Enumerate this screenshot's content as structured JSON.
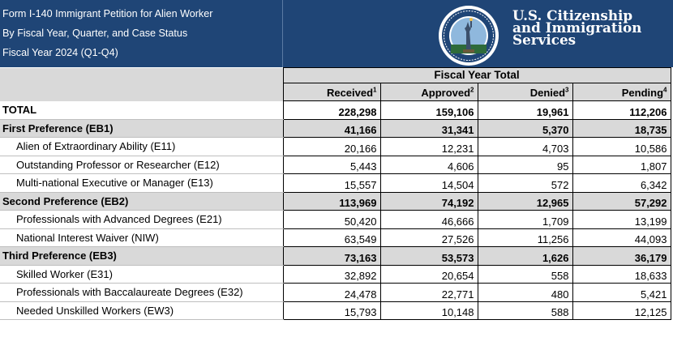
{
  "header": {
    "title_lines": [
      "Form I-140 Immigrant Petition for Alien Worker",
      "By Fiscal Year, Quarter, and Case Status",
      "Fiscal Year 2024 (Q1-Q4)"
    ],
    "agency_lines": [
      "U.S. Citizenship",
      "and Immigration",
      "Services"
    ],
    "logo": "uscis-seal",
    "background_color": "#1f4576"
  },
  "table": {
    "group_header": "Fiscal Year Total",
    "columns": [
      {
        "label": "Received",
        "note": "1"
      },
      {
        "label": "Approved",
        "note": "2"
      },
      {
        "label": "Denied",
        "note": "3"
      },
      {
        "label": "Pending",
        "note": "4"
      }
    ],
    "rows": [
      {
        "label": "TOTAL",
        "level": "total",
        "values": [
          "228,298",
          "159,106",
          "19,961",
          "112,206"
        ]
      },
      {
        "label": "First Preference (EB1)",
        "level": "group",
        "values": [
          "41,166",
          "31,341",
          "5,370",
          "18,735"
        ]
      },
      {
        "label": "Alien of Extraordinary Ability (E11)",
        "level": "item",
        "values": [
          "20,166",
          "12,231",
          "4,703",
          "10,586"
        ]
      },
      {
        "label": "Outstanding Professor or Researcher (E12)",
        "level": "item",
        "values": [
          "5,443",
          "4,606",
          "95",
          "1,807"
        ]
      },
      {
        "label": "Multi-national Executive or Manager (E13)",
        "level": "item",
        "values": [
          "15,557",
          "14,504",
          "572",
          "6,342"
        ]
      },
      {
        "label": "Second Preference (EB2)",
        "level": "group",
        "values": [
          "113,969",
          "74,192",
          "12,965",
          "57,292"
        ]
      },
      {
        "label": "Professionals with Advanced Degrees (E21)",
        "level": "item",
        "values": [
          "50,420",
          "46,666",
          "1,709",
          "13,199"
        ]
      },
      {
        "label": "National Interest Waiver (NIW)",
        "level": "item",
        "values": [
          "63,549",
          "27,526",
          "11,256",
          "44,093"
        ]
      },
      {
        "label": "Third Preference (EB3)",
        "level": "group",
        "values": [
          "73,163",
          "53,573",
          "1,626",
          "36,179"
        ]
      },
      {
        "label": "Skilled Worker (E31)",
        "level": "item",
        "values": [
          "32,892",
          "20,654",
          "558",
          "18,633"
        ]
      },
      {
        "label": "Professionals with Baccalaureate Degrees (E32)",
        "level": "item",
        "values": [
          "24,478",
          "22,771",
          "480",
          "5,421"
        ]
      },
      {
        "label": "Needed Unskilled Workers (EW3)",
        "level": "item",
        "values": [
          "15,793",
          "10,148",
          "588",
          "12,125"
        ]
      }
    ]
  }
}
